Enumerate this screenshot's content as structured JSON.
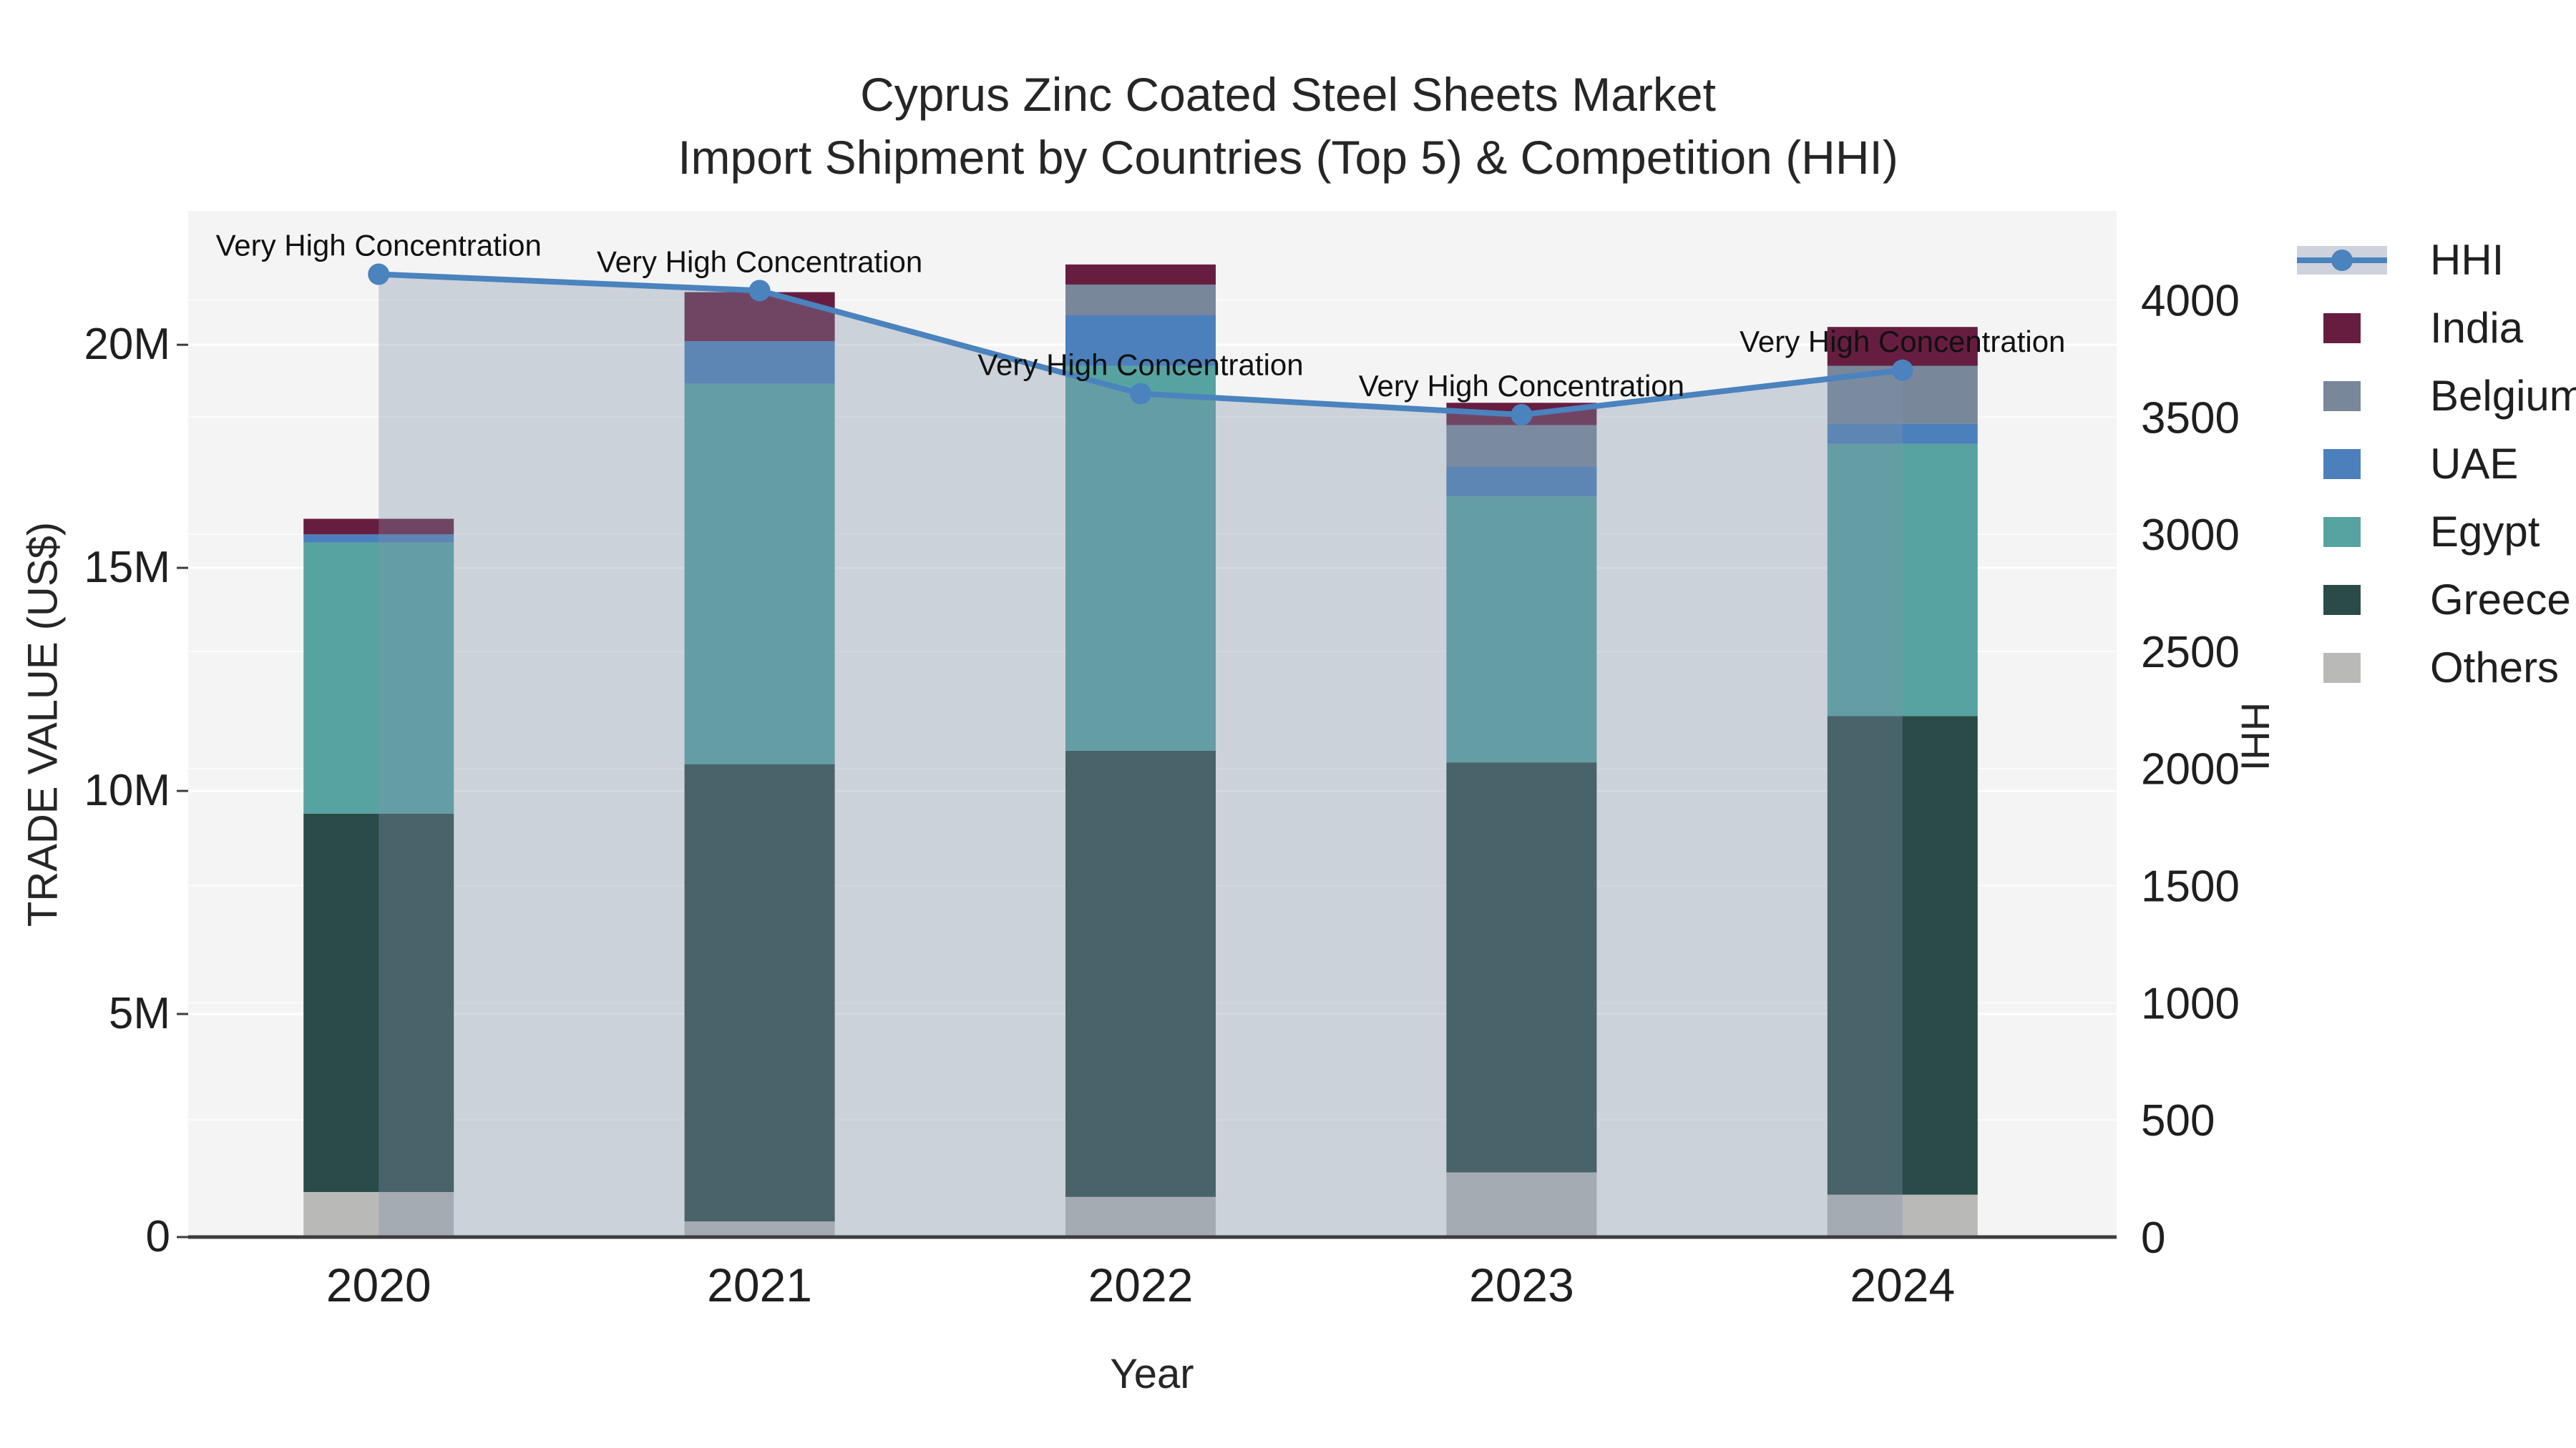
{
  "title": {
    "line1": "Cyprus Zinc Coated Steel Sheets Market",
    "line2": "Import Shipment by Countries (Top 5) & Competition (HHI)"
  },
  "axes": {
    "x": {
      "title": "Year",
      "ticks": [
        "2020",
        "2021",
        "2022",
        "2023",
        "2024"
      ]
    },
    "y_left": {
      "title": "TRADE VALUE (US$)",
      "ticks": [
        "0",
        "5M",
        "10M",
        "15M",
        "20M"
      ],
      "tick_values": [
        0,
        5000000,
        10000000,
        15000000,
        20000000
      ],
      "range": [
        0,
        23000000
      ]
    },
    "y_right": {
      "title": "HHI",
      "ticks": [
        "0",
        "500",
        "1000",
        "1500",
        "2000",
        "2500",
        "3000",
        "3500",
        "4000"
      ],
      "tick_values": [
        0,
        500,
        1000,
        1500,
        2000,
        2500,
        3000,
        3500,
        4000
      ],
      "range": [
        0,
        4380
      ]
    }
  },
  "legend": {
    "items": [
      {
        "label": "HHI",
        "type": "line"
      },
      {
        "label": "India",
        "type": "swatch",
        "color": "#671D40"
      },
      {
        "label": "Belgium",
        "type": "swatch",
        "color": "#78879A"
      },
      {
        "label": "UAE",
        "type": "swatch",
        "color": "#4B80BC"
      },
      {
        "label": "Egypt",
        "type": "swatch",
        "color": "#57A3A1"
      },
      {
        "label": "Greece",
        "type": "swatch",
        "color": "#2A4B48"
      },
      {
        "label": "Others",
        "type": "swatch",
        "color": "#B9B9B7"
      }
    ]
  },
  "annotation_text": "Very High Concentration",
  "colors": {
    "india": "#671D40",
    "belgium": "#78879A",
    "uae": "#4B80BC",
    "egypt": "#57A3A1",
    "greece": "#2A4B48",
    "others": "#B9B9B7",
    "hhi_line": "#4A83BE",
    "hhi_area": "rgba(130,145,170,0.35)",
    "hhi_area_legend": "#CDD2DC",
    "plot_bg": "#F4F4F4",
    "grid_left": "rgba(255,255,255,1)",
    "grid_right": "rgba(255,255,255,0.75)",
    "axis_line": "#3D3D3D",
    "tick_text": "#1F1F1F",
    "annotation_text": "#111111"
  },
  "chart_data": {
    "type": "bar",
    "subtype": "stacked-bars-with-line",
    "categories": [
      "2020",
      "2021",
      "2022",
      "2023",
      "2024"
    ],
    "stack_order_bottom_to_top": [
      "Others",
      "Greece",
      "Egypt",
      "UAE",
      "Belgium",
      "India"
    ],
    "series": [
      {
        "name": "India",
        "axis": "left",
        "values": [
          350000,
          1100000,
          450000,
          500000,
          870000
        ]
      },
      {
        "name": "Belgium",
        "axis": "left",
        "values": [
          0,
          0,
          690000,
          930000,
          1300000
        ]
      },
      {
        "name": "UAE",
        "axis": "left",
        "values": [
          180000,
          950000,
          1130000,
          670000,
          450000
        ]
      },
      {
        "name": "Egypt",
        "axis": "left",
        "values": [
          6080000,
          8530000,
          8630000,
          5960000,
          6100000
        ]
      },
      {
        "name": "Greece",
        "axis": "left",
        "values": [
          8480000,
          10250000,
          10000000,
          9190000,
          10730000
        ]
      },
      {
        "name": "Others",
        "axis": "left",
        "values": [
          1010000,
          350000,
          900000,
          1450000,
          950000
        ]
      }
    ],
    "line_series": {
      "name": "HHI",
      "axis": "right",
      "values": [
        4110,
        4040,
        3600,
        3510,
        3700
      ],
      "has_area_fill": true,
      "annotations": [
        "Very High Concentration",
        "Very High Concentration",
        "Very High Concentration",
        "Very High Concentration",
        "Very High Concentration"
      ]
    },
    "title": "Cyprus Zinc Coated Steel Sheets Market — Import Shipment by Countries (Top 5) & Competition (HHI)",
    "xlabel": "Year",
    "ylabel": "TRADE VALUE (US$)",
    "ylabel2": "HHI",
    "ylim_left": [
      0,
      23000000
    ],
    "ylim_right": [
      0,
      4380
    ],
    "grid": true,
    "legend_position": "right"
  }
}
